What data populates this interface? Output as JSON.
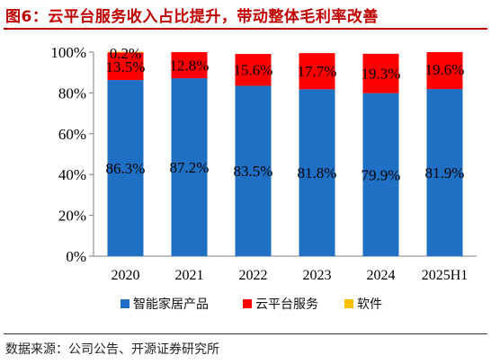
{
  "header": {
    "title": "图6：云平台服务收入占比提升，带动整体毛利率改善"
  },
  "footer": {
    "source": "数据来源：公司公告、开源证券研究所"
  },
  "chart_data": {
    "type": "bar",
    "stacked": true,
    "categories": [
      "2020",
      "2021",
      "2022",
      "2023",
      "2024",
      "2025H1"
    ],
    "series": [
      {
        "name": "智能家居产品",
        "color": "#1f6fc5",
        "values": [
          86.3,
          87.2,
          83.5,
          81.8,
          79.9,
          81.9
        ],
        "labels": [
          "86.3%",
          "87.2%",
          "83.5%",
          "81.8%",
          "79.9%",
          "81.9%"
        ]
      },
      {
        "name": "云平台服务",
        "color": "#ff0000",
        "values": [
          13.5,
          12.8,
          15.6,
          17.7,
          19.3,
          19.6
        ],
        "labels": [
          "13.5%",
          "12.8%",
          "15.6%",
          "17.7%",
          "19.3%",
          "19.6%"
        ]
      },
      {
        "name": "软件",
        "color": "#ffc000",
        "values": [
          0.2,
          0,
          0,
          0,
          0,
          0
        ],
        "labels": [
          "0.2%",
          "",
          "",
          "",
          "",
          ""
        ]
      }
    ],
    "yticks": [
      "0%",
      "20%",
      "40%",
      "60%",
      "80%",
      "100%"
    ],
    "ylim": [
      0,
      100
    ],
    "grid": false,
    "legend_position": "bottom"
  }
}
